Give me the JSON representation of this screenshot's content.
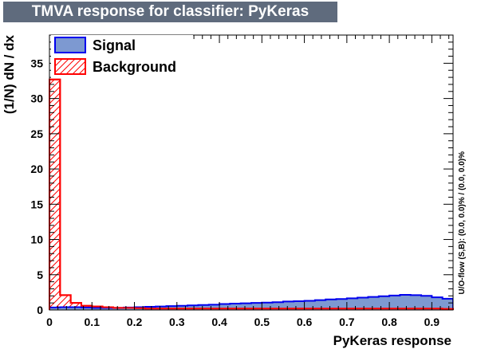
{
  "title": "TMVA response for classifier: PyKeras",
  "overflow_note": "U/O-flow (S,B): (0.0, 0.0)% / (0.0, 0.0)%",
  "colors": {
    "title_bg": "#5f6b7d",
    "signal_fill": "#7d99d1",
    "signal_line": "#0000ee",
    "background_line": "#ff0000"
  },
  "chart_data": {
    "type": "bar",
    "xlabel": "PyKeras response",
    "ylabel": "(1/N) dN / dx",
    "xlim": [
      0,
      0.95
    ],
    "ylim": [
      0,
      39
    ],
    "x_ticks": [
      "0",
      "0.1",
      "0.2",
      "0.3",
      "0.4",
      "0.5",
      "0.6",
      "0.7",
      "0.8",
      "0.9"
    ],
    "y_ticks": [
      "0",
      "5",
      "10",
      "15",
      "20",
      "25",
      "30",
      "35"
    ],
    "bin_width": 0.025,
    "series": [
      {
        "name": "Signal",
        "style": "filled",
        "values": [
          0.35,
          0.4,
          0.4,
          0.35,
          0.3,
          0.3,
          0.3,
          0.35,
          0.4,
          0.45,
          0.5,
          0.55,
          0.6,
          0.65,
          0.7,
          0.75,
          0.85,
          0.9,
          0.95,
          1.0,
          1.05,
          1.1,
          1.2,
          1.25,
          1.3,
          1.4,
          1.5,
          1.55,
          1.65,
          1.75,
          1.85,
          1.95,
          2.05,
          2.15,
          2.1,
          2.0,
          1.8,
          1.6
        ]
      },
      {
        "name": "Background",
        "style": "hatched",
        "values": [
          32.7,
          2.1,
          1.0,
          0.6,
          0.5,
          0.4,
          0.3,
          0.3,
          0.25,
          0.2,
          0.2,
          0.2,
          0.2,
          0.2,
          0.2,
          0.2,
          0.2,
          0.2,
          0.2,
          0.2,
          0.2,
          0.2,
          0.2,
          0.2,
          0.2,
          0.2,
          0.2,
          0.2,
          0.2,
          0.2,
          0.2,
          0.2,
          0.2,
          0.2,
          0.2,
          0.2,
          0.2,
          0.15
        ]
      }
    ],
    "legend": "top-left"
  }
}
